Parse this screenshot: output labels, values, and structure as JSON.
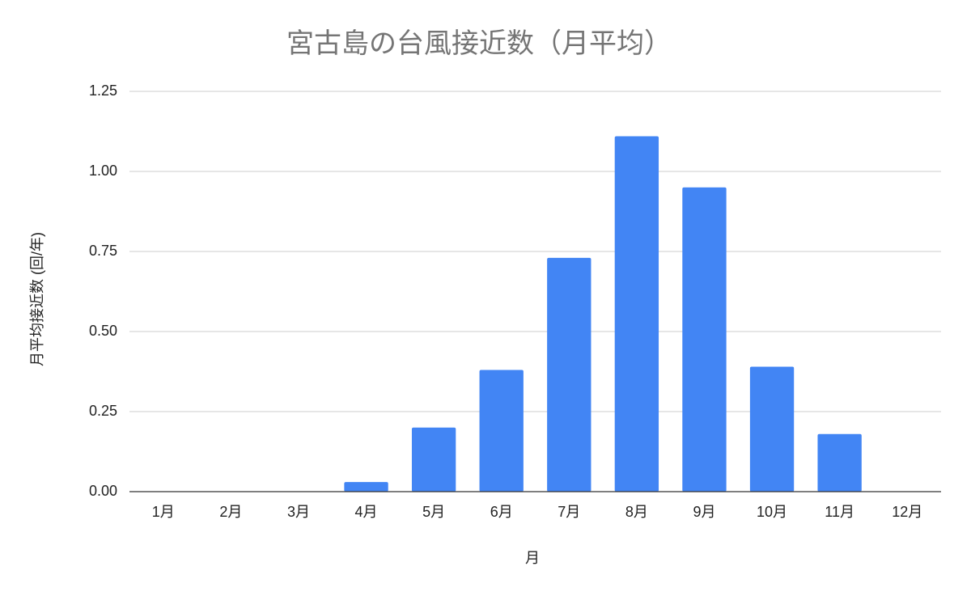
{
  "chart_data": {
    "type": "bar",
    "title": "宮古島の台風接近数（月平均）",
    "x_label": "月",
    "y_label": "月平均接近数 (回/年)",
    "categories": [
      "1月",
      "2月",
      "3月",
      "4月",
      "5月",
      "6月",
      "7月",
      "8月",
      "9月",
      "10月",
      "11月",
      "12月"
    ],
    "values": [
      0,
      0,
      0,
      0.03,
      0.2,
      0.38,
      0.73,
      1.11,
      0.95,
      0.39,
      0.18,
      0
    ],
    "color": "#4285f4",
    "ylim": [
      0,
      1.25
    ],
    "yticks": [
      {
        "value": 0,
        "label": "0.00"
      },
      {
        "value": 0.25,
        "label": "0.25"
      },
      {
        "value": 0.5,
        "label": "0.50"
      },
      {
        "value": 0.75,
        "label": "0.75"
      },
      {
        "value": 1,
        "label": "1.00"
      },
      {
        "value": 1.25,
        "label": "1.25"
      }
    ],
    "grid": true
  }
}
